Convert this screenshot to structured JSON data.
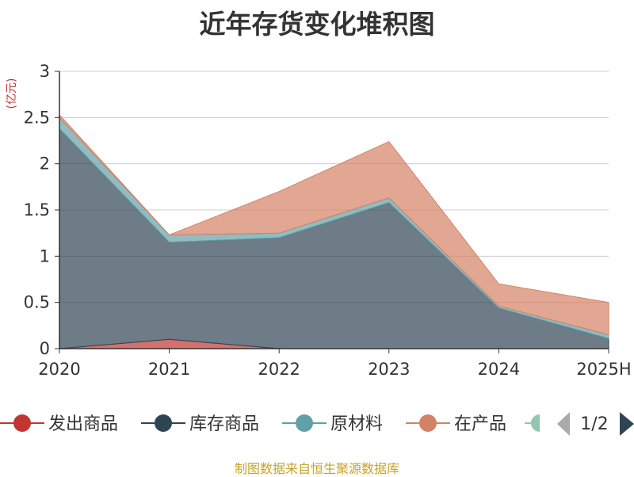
{
  "chart_data": {
    "type": "area",
    "stacked": true,
    "title": "近年存货变化堆积图",
    "unit_label": "(亿元)",
    "categories": [
      "2020",
      "2021",
      "2022",
      "2023",
      "2024",
      "2025H"
    ],
    "ylim": [
      0,
      3
    ],
    "y_ticks": [
      "0",
      "0.5",
      "1",
      "1.5",
      "2",
      "2.5",
      "3"
    ],
    "grid": true,
    "legend_position": "bottom",
    "series": [
      {
        "name": "发出商品",
        "color": "#c23531",
        "values": [
          0.0,
          0.1,
          0.0,
          0.0,
          0.0,
          0.0
        ]
      },
      {
        "name": "库存商品",
        "color": "#2f4554",
        "values": [
          2.38,
          1.05,
          1.2,
          1.58,
          0.44,
          0.11
        ]
      },
      {
        "name": "原材料",
        "color": "#61a0a8",
        "values": [
          0.12,
          0.08,
          0.05,
          0.05,
          0.02,
          0.04
        ]
      },
      {
        "name": "在产品",
        "color": "#d48265",
        "values": [
          0.03,
          0.0,
          0.45,
          0.61,
          0.24,
          0.35
        ]
      }
    ],
    "legend_page": "1/2"
  },
  "footer": {
    "source": "制图数据来自恒生聚源数据库"
  },
  "colors": {
    "grid": "#cccccc",
    "axis": "#333333",
    "pager_active": "#2f4554",
    "pager_inactive": "#aaaaaa",
    "partial_legend": "#91c7ae"
  }
}
